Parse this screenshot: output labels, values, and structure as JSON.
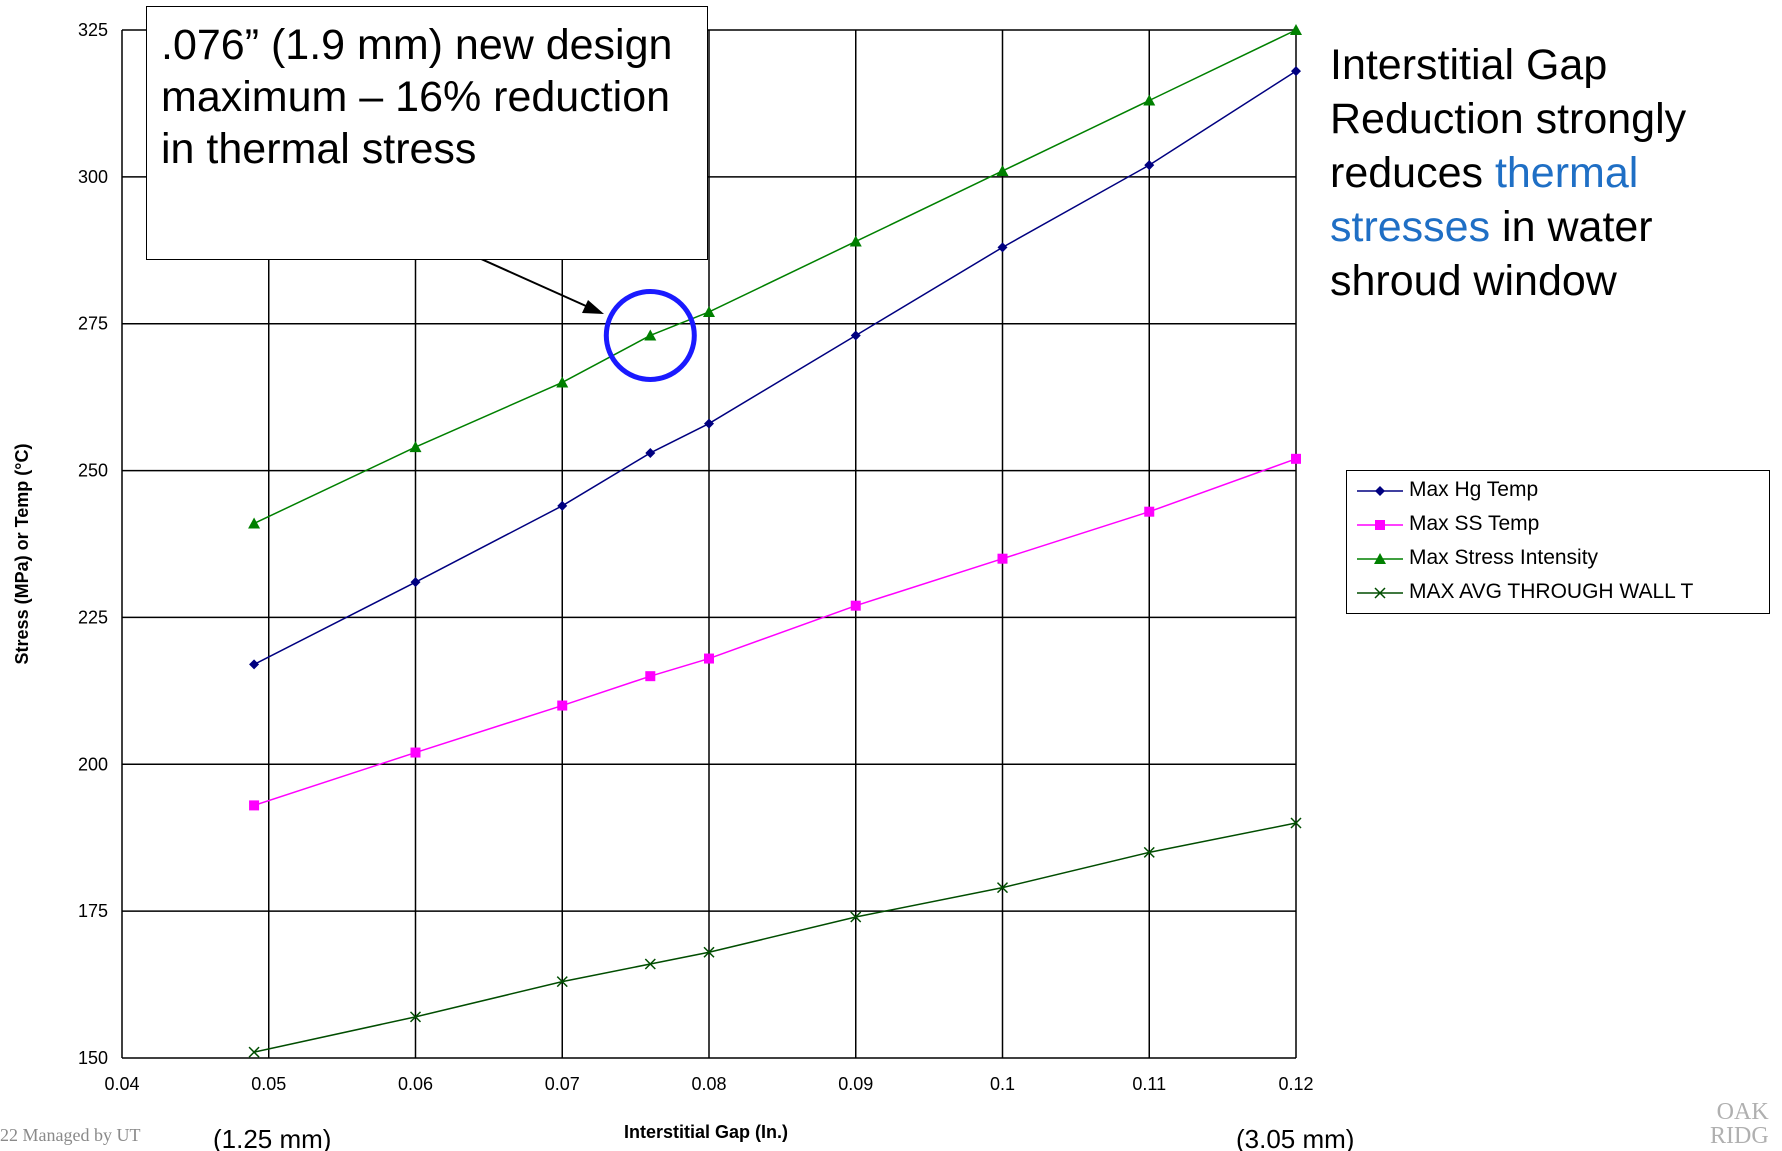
{
  "chart_data": {
    "type": "line",
    "xlabel": "Interstitial Gap (In.)",
    "ylabel": "Stress (MPa) or Temp (°C)",
    "xlim": [
      0.04,
      0.12
    ],
    "ylim": [
      150,
      325
    ],
    "x_ticks": [
      "0.04",
      "0.05",
      "0.06",
      "0.07",
      "0.08",
      "0.09",
      "0.1",
      "0.11",
      "0.12"
    ],
    "y_ticks": [
      "150",
      "175",
      "200",
      "225",
      "250",
      "275",
      "300",
      "325"
    ],
    "grid": true,
    "legend_position": "right",
    "x": [
      0.049,
      0.06,
      0.07,
      0.076,
      0.08,
      0.09,
      0.1,
      0.11,
      0.12
    ],
    "series": [
      {
        "name": "Max Hg Temp",
        "color": "#000080",
        "marker": "diamond",
        "values": [
          217,
          231,
          244,
          253,
          258,
          273,
          288,
          302,
          318
        ]
      },
      {
        "name": "Max SS Temp",
        "color": "#ff00ff",
        "marker": "square",
        "values": [
          193,
          202,
          210,
          215,
          218,
          227,
          235,
          243,
          252
        ]
      },
      {
        "name": "Max Stress Intensity",
        "color": "#008000",
        "marker": "triangle",
        "values": [
          241,
          254,
          265,
          273,
          277,
          289,
          301,
          313,
          325
        ]
      },
      {
        "name": "MAX AVG THROUGH WALL T",
        "color": "#004d00",
        "marker": "x",
        "values": [
          151,
          157,
          163,
          166,
          168,
          174,
          179,
          185,
          190
        ]
      }
    ],
    "annotations": {
      "callout": ".076” (1.9 mm) new design maximum – 16% reduction in thermal stress",
      "highlight_point": {
        "x": 0.076,
        "y": 273
      },
      "x_left_note": "(1.25 mm)",
      "x_right_note": "(3.05 mm)"
    }
  },
  "callout": {
    "text": ".076” (1.9 mm) new design maximum – 16% reduction in thermal stress"
  },
  "sidenote": {
    "before": "Interstitial Gap Reduction strongly reduces ",
    "highlight": "thermal stresses",
    "after": " in water shroud window",
    "highlight_color": "#1f6fc5"
  },
  "footer": {
    "text": "22    Managed by UT"
  },
  "logo": {
    "line1": "OAK",
    "line2": "RIDG"
  }
}
